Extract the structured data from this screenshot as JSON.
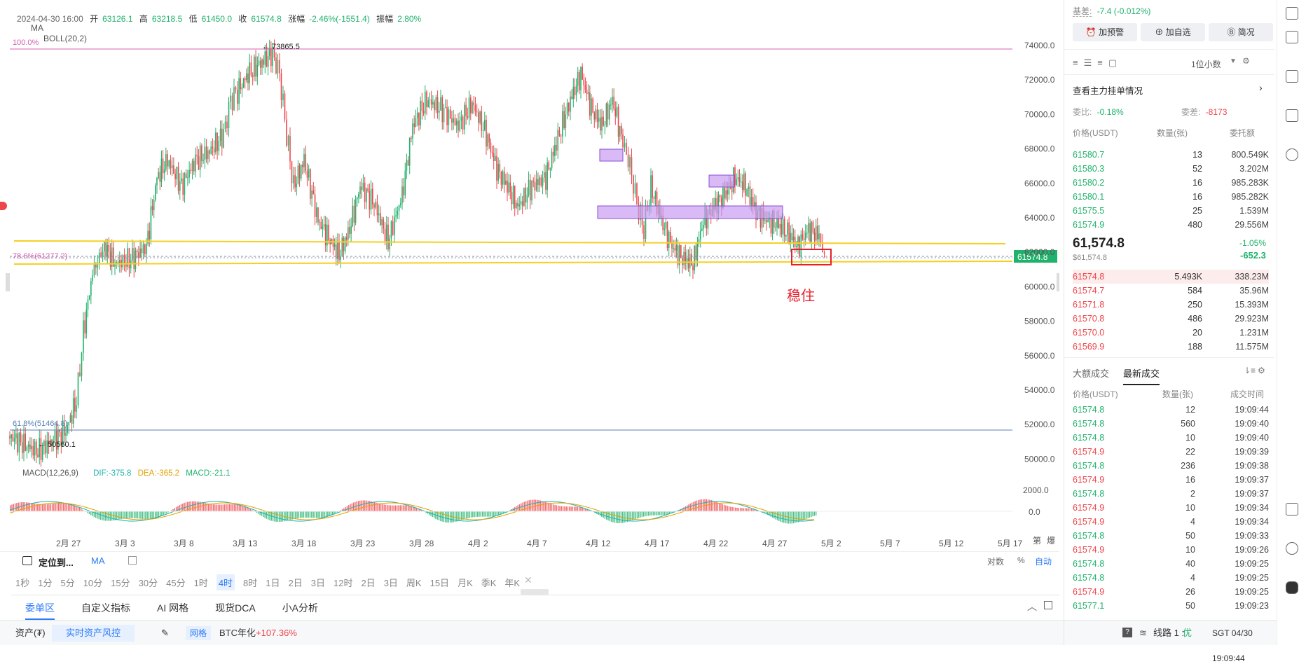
{
  "ohlc": {
    "time": "2024-04-30 16:00",
    "open_label": "开",
    "open": "63126.1",
    "high_label": "高",
    "high": "63218.5",
    "low_label": "低",
    "low": "61450.0",
    "close_label": "收",
    "close": "61574.8",
    "change_label": "涨幅",
    "change": "-2.46%(-1551.4)",
    "amp_label": "振幅",
    "amp": "2.80%"
  },
  "indicators": {
    "ma": "MA",
    "boll": "BOLL(20,2)"
  },
  "annotations": {
    "high_marker": "← 73865.5",
    "low_marker": "← 50560.1",
    "fib_100": "100.0%",
    "fib_786": "78.6%(61277.2)",
    "fib_618": "61.8%(51464.8)",
    "stable_text": "稳住",
    "price_tag": "61574.8"
  },
  "y_axis": [
    "74000.0",
    "72000.0",
    "70000.0",
    "68000.0",
    "66000.0",
    "64000.0",
    "62000.0",
    "60000.0",
    "58000.0",
    "56000.0",
    "54000.0",
    "52000.0",
    "50000.0"
  ],
  "x_axis": [
    "2月 27",
    "3月 3",
    "3月 8",
    "3月 13",
    "3月 18",
    "3月 23",
    "3月 28",
    "4月 2",
    "4月 7",
    "4月 12",
    "4月 17",
    "4月 22",
    "4月 27",
    "5月 2",
    "5月 7",
    "5月 12",
    "5月 17"
  ],
  "x_corner": [
    "第",
    "爆"
  ],
  "macd": {
    "label": "MACD(12,26,9)",
    "dif": "DIF:-375.8",
    "dea": "DEA:-365.2",
    "macd": "MACD:-21.1",
    "axis": [
      "2000.0",
      "0.0"
    ]
  },
  "toolbar": {
    "locate": "定位到...",
    "ma": "MA",
    "log": "对数",
    "pct": "%",
    "auto": "自动"
  },
  "periods": [
    "1秒",
    "1分",
    "5分",
    "10分",
    "15分",
    "30分",
    "45分",
    "1时",
    "4时",
    "8时",
    "1日",
    "2日",
    "3日",
    "12时",
    "2日",
    "3日",
    "周K",
    "15日",
    "月K",
    "季K",
    "年K"
  ],
  "active_period": "4时",
  "bottom_tabs": [
    "委单区",
    "自定义指标",
    "AI 网格",
    "现货DCA",
    "小A分析"
  ],
  "status": {
    "asset": "资产(₮)",
    "risk": "实时资产风控",
    "grid": "网格",
    "btc_label": "BTC年化",
    "btc_value": "+107.36%",
    "line": "线路 1 :",
    "line_quality": "优",
    "clock": "SGT 04/30 19:09:44"
  },
  "right": {
    "basis_label": "基差:",
    "basis": "-7.4 (-0.012%)",
    "btn_alert": "加预警",
    "btn_fav": "加自选",
    "btn_brief": "简况",
    "decimals": "1位小数",
    "depth_title": "查看主力挂单情况",
    "ratio_label": "委比:",
    "ratio": "-0.18%",
    "diff_label": "委差:",
    "diff": "-8173",
    "cols": {
      "price": "价格(USDT)",
      "qty": "数量(张)",
      "total": "委托额"
    },
    "asks": [
      [
        "61580.7",
        "13",
        "800.549K"
      ],
      [
        "61580.3",
        "52",
        "3.202M"
      ],
      [
        "61580.2",
        "16",
        "985.283K"
      ],
      [
        "61580.1",
        "16",
        "985.282K"
      ],
      [
        "61575.5",
        "25",
        "1.539M"
      ],
      [
        "61574.9",
        "480",
        "29.556M"
      ]
    ],
    "last_price": "61,574.8",
    "mark_price": "$61,574.8",
    "last_pct": "-1.05%",
    "last_chg": "-652.3",
    "bids": [
      [
        "61574.8",
        "5.493K",
        "338.23M"
      ],
      [
        "61574.7",
        "584",
        "35.96M"
      ],
      [
        "61571.8",
        "250",
        "15.393M"
      ],
      [
        "61570.8",
        "486",
        "29.923M"
      ],
      [
        "61570.0",
        "20",
        "1.231M"
      ],
      [
        "61569.9",
        "188",
        "11.575M"
      ]
    ],
    "trade_tabs": [
      "大额成交",
      "最新成交"
    ],
    "trade_cols": {
      "price": "价格(USDT)",
      "qty": "数量(张)",
      "time": "成交时间"
    },
    "trades": [
      [
        "61574.8",
        "12",
        "19:09:44",
        "g"
      ],
      [
        "61574.8",
        "560",
        "19:09:40",
        "g"
      ],
      [
        "61574.8",
        "10",
        "19:09:40",
        "g"
      ],
      [
        "61574.9",
        "22",
        "19:09:39",
        "r"
      ],
      [
        "61574.8",
        "236",
        "19:09:38",
        "g"
      ],
      [
        "61574.9",
        "16",
        "19:09:37",
        "r"
      ],
      [
        "61574.8",
        "2",
        "19:09:37",
        "g"
      ],
      [
        "61574.9",
        "10",
        "19:09:34",
        "r"
      ],
      [
        "61574.9",
        "4",
        "19:09:34",
        "r"
      ],
      [
        "61574.8",
        "50",
        "19:09:33",
        "g"
      ],
      [
        "61574.9",
        "10",
        "19:09:26",
        "r"
      ],
      [
        "61574.8",
        "40",
        "19:09:25",
        "g"
      ],
      [
        "61574.8",
        "4",
        "19:09:25",
        "g"
      ],
      [
        "61574.9",
        "26",
        "19:09:25",
        "r"
      ],
      [
        "61577.1",
        "50",
        "19:09:23",
        "g"
      ]
    ]
  },
  "colors": {
    "up": "#20b26c",
    "down": "#ef454a",
    "accent": "#2f7cf6",
    "yellow": "#f5d020",
    "purple": "#c99bf2"
  }
}
